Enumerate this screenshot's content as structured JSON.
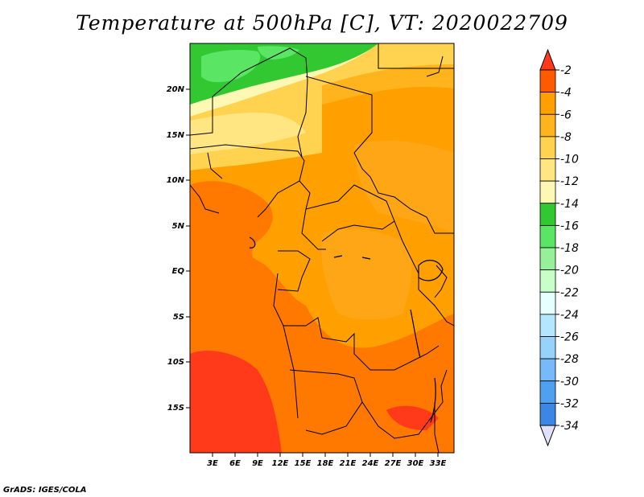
{
  "title": "Temperature at 500hPa [C], VT: 2020022709",
  "credit": "GrADS: IGES/COLA",
  "map": {
    "lat_labels": [
      "20N",
      "15N",
      "10N",
      "5N",
      "EQ",
      "5S",
      "10S",
      "15S"
    ],
    "lon_labels": [
      "3E",
      "6E",
      "9E",
      "12E",
      "15E",
      "18E",
      "21E",
      "24E",
      "27E",
      "30E",
      "33E"
    ]
  },
  "colorbar": {
    "labels": [
      "-2",
      "-4",
      "-6",
      "-8",
      "-10",
      "-12",
      "-14",
      "-16",
      "-18",
      "-20",
      "-22",
      "-24",
      "-26",
      "-28",
      "-30",
      "-32",
      "-34"
    ],
    "colors": [
      "#ff5a00",
      "#ff9f00",
      "#ffb41e",
      "#ffd250",
      "#ffe682",
      "#fff8b4",
      "#32c832",
      "#5ae664",
      "#96f09a",
      "#c8ffc8",
      "#e6ffff",
      "#b4e6ff",
      "#96d2fa",
      "#78b9fa",
      "#50a0f0",
      "#3c87e6",
      "#1e6ed2",
      "#1450b4",
      "#0a0a78"
    ],
    "top_color": "#ff3a1a",
    "bottom_color": "#e1e1ff"
  }
}
